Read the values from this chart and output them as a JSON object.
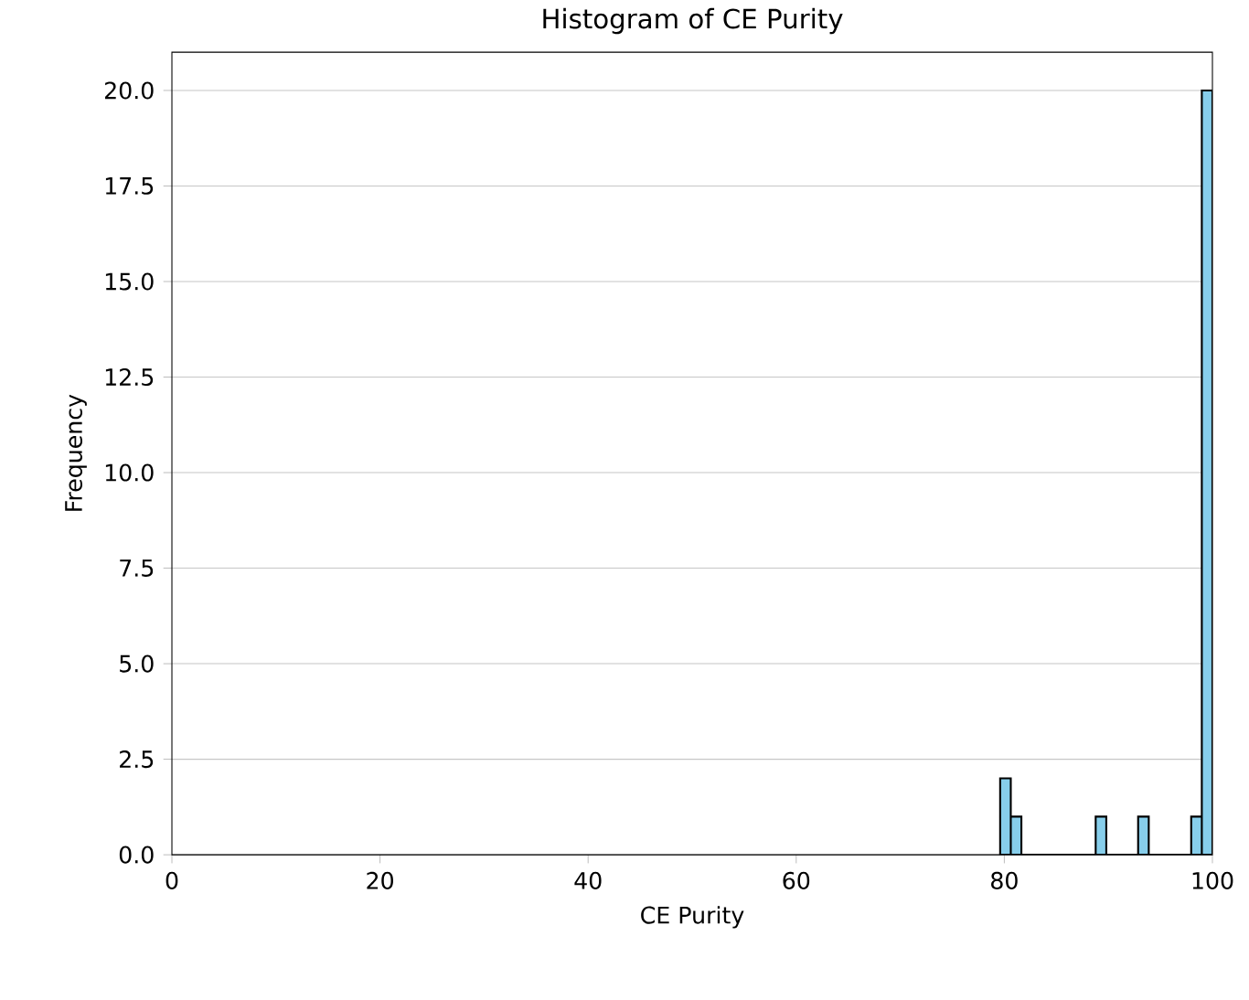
{
  "chart_data": {
    "type": "histogram",
    "title": "Histogram of CE Purity",
    "xlabel": "CE Purity",
    "ylabel": "Frequency",
    "bins": [
      79.6,
      80.62,
      81.64,
      82.66,
      83.68,
      84.7,
      85.72,
      86.74,
      87.76,
      88.78,
      89.8,
      90.82,
      91.84,
      92.86,
      93.88,
      94.9,
      95.92,
      96.94,
      97.96,
      98.98,
      100
    ],
    "values": [
      2,
      1,
      0,
      0,
      0,
      0,
      0,
      0,
      0,
      1,
      0,
      0,
      0,
      1,
      0,
      0,
      0,
      0,
      1,
      20
    ],
    "color": "#87ceeb",
    "xlim": [
      0,
      100
    ],
    "xticks": [
      0,
      20,
      40,
      60,
      80,
      100
    ],
    "ylim": [
      0,
      21
    ],
    "yticks": [
      {
        "value": 0,
        "label": "0.0"
      },
      {
        "value": 2.5,
        "label": "2.5"
      },
      {
        "value": 5,
        "label": "5.0"
      },
      {
        "value": 7.5,
        "label": "7.5"
      },
      {
        "value": 10,
        "label": "10.0"
      },
      {
        "value": 12.5,
        "label": "12.5"
      },
      {
        "value": 15,
        "label": "15.0"
      },
      {
        "value": 17.5,
        "label": "17.5"
      },
      {
        "value": 20,
        "label": "20.0"
      }
    ],
    "grid": "y"
  }
}
